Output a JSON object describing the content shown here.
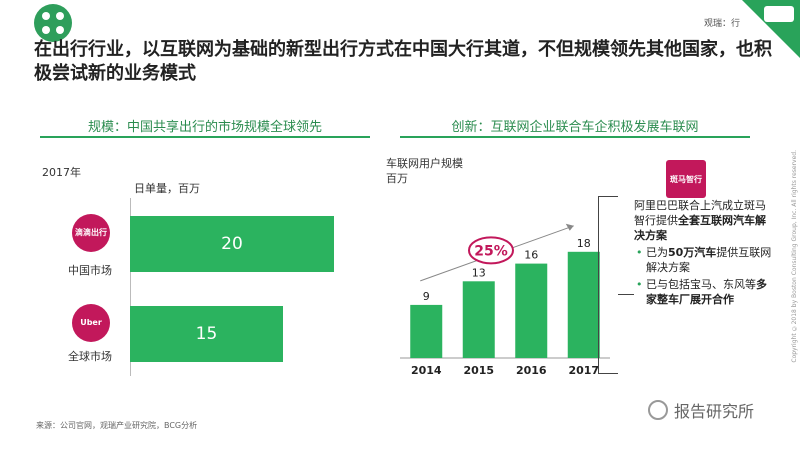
{
  "header": {
    "top_right_label": "观瑞：行",
    "headline": "在出行行业，以互联网为基础的新型出行方式在中国大行其道，不但规模领先其他国家，也积极尝试新的业务模式"
  },
  "left_section": {
    "title": "规模：中国共享出行的市场规模全球领先",
    "year": "2017年",
    "unit": "日单量，百万",
    "bars": [
      {
        "brand": "滴滴出行",
        "label": "中国市场",
        "value": 20,
        "brand_color": "#c2185b"
      },
      {
        "brand": "Uber",
        "label": "全球市场",
        "value": 15,
        "brand_color": "#c2185b"
      }
    ],
    "max_value": 20
  },
  "right_section": {
    "title": "创新：互联网企业联合车企积极发展车联网",
    "chart_title": "车联网用户规模",
    "chart_unit": "百万",
    "growth_label": "25%",
    "zebra_logo": "斑马智行",
    "annotation": {
      "intro_plain": "阿里巴巴联合上汽成立斑马智行提供",
      "intro_bold": "全套互联网汽车解决方案",
      "bullets": [
        {
          "pre": "已为",
          "bold": "50万汽车",
          "post": "提供互联网解决方案"
        },
        {
          "pre": "已与包括宝马、东风等",
          "bold": "多家整车厂展开合作",
          "post": ""
        }
      ]
    }
  },
  "chart_data": [
    {
      "type": "bar",
      "orientation": "horizontal",
      "title": "规模：中国共享出行的市场规模全球领先",
      "xlabel": "日单量，百万",
      "categories": [
        "中国市场",
        "全球市场"
      ],
      "values": [
        20,
        15
      ]
    },
    {
      "type": "bar",
      "title": "车联网用户规模",
      "ylabel": "百万",
      "categories": [
        "2014",
        "2015",
        "2016",
        "2017"
      ],
      "values": [
        9,
        13,
        16,
        18
      ],
      "annotation": "25%",
      "colors": {
        "bar": "#2bb35f"
      }
    }
  ],
  "footer": {
    "source": "来源：公司官网，观瑞产业研究院，BCG分析",
    "watermark": "报告研究所",
    "copyright": "Copyright ©2018 by Boston Consulting Group, Inc. All rights reserved."
  }
}
